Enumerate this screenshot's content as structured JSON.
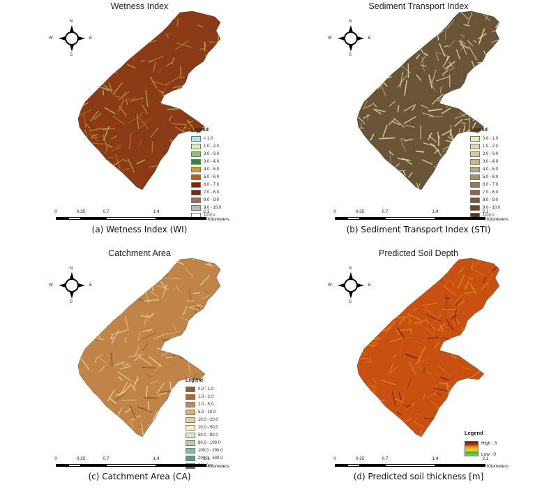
{
  "compass": {
    "n": "N",
    "s": "S",
    "e": "E",
    "w": "W"
  },
  "scale": {
    "ticks": [
      "0",
      "0.35",
      "0.7",
      "1.4",
      "2.1"
    ],
    "units": "Kilometers"
  },
  "panels": [
    {
      "title": "Wetness Index",
      "caption": "(a) Wetness Index (WI)",
      "legend_title": "Legend",
      "legend": [
        {
          "label": "< 1.0",
          "color": "#a8e8e8"
        },
        {
          "label": "1.0 - 2.0",
          "color": "#d8f0a8"
        },
        {
          "label": "2.0 - 3.0",
          "color": "#88c860"
        },
        {
          "label": "3.0 - 4.0",
          "color": "#2e8a3a"
        },
        {
          "label": "4.0 - 5.0",
          "color": "#c8a020"
        },
        {
          "label": "5.0 - 6.0",
          "color": "#c85a10"
        },
        {
          "label": "6.0 - 7.0",
          "color": "#8a2008"
        },
        {
          "label": "7.0 - 8.0",
          "color": "#6a3018"
        },
        {
          "label": "8.0 - 9.0",
          "color": "#9a7060"
        },
        {
          "label": "9.0 - 10.0",
          "color": "#b8b8b8"
        },
        {
          "label": "10.0 <",
          "color": "#ffffff"
        }
      ],
      "fill": "#8a3a14",
      "texture": "#c89a40",
      "accent": "#9ad070"
    },
    {
      "title": "Sediment Transport Index",
      "caption": "(b) Sediment Transport Index (STI)",
      "legend_title": "Legend",
      "legend": [
        {
          "label": "0.0 - 1.0",
          "color": "#f4e8b8"
        },
        {
          "label": "1.0 - 2.0",
          "color": "#e4d8a8"
        },
        {
          "label": "2.0 - 3.0",
          "color": "#d8c898"
        },
        {
          "label": "3.0 - 4.0",
          "color": "#c8b888"
        },
        {
          "label": "4.0 - 5.0",
          "color": "#b8a878"
        },
        {
          "label": "5.0 - 6.0",
          "color": "#a89068"
        },
        {
          "label": "6.0 - 7.0",
          "color": "#987858"
        },
        {
          "label": "7.0 - 8.0",
          "color": "#886850"
        },
        {
          "label": "8.0 - 9.0",
          "color": "#785840"
        },
        {
          "label": "9.0 - 10.0",
          "color": "#684830"
        },
        {
          "label": "10.0 <",
          "color": "#583820"
        }
      ],
      "fill": "#6a5438",
      "texture": "#eee0b0",
      "accent": "#f4e8b8"
    },
    {
      "title": "Catchment Area",
      "caption": "(c) Catchment Area (CA)",
      "legend_title": "Legend",
      "legend": [
        {
          "label": "0.0 - 1.0",
          "color": "#9a5a28"
        },
        {
          "label": "1.0 - 2.0",
          "color": "#b06a30"
        },
        {
          "label": "2.0 - 5.0",
          "color": "#c8884a"
        },
        {
          "label": "5.0 - 10.0",
          "color": "#dcac70"
        },
        {
          "label": "10.0 - 20.0",
          "color": "#ecd098"
        },
        {
          "label": "20.0 - 50.0",
          "color": "#f8f0c0"
        },
        {
          "label": "50.0 - 80.0",
          "color": "#d8e8c0"
        },
        {
          "label": "80.0 - 100.0",
          "color": "#b0d0b0"
        },
        {
          "label": "100.0 - 200.0",
          "color": "#88b8a8"
        },
        {
          "label": "200.0 - 500.0",
          "color": "#5a9898"
        },
        {
          "label": "500.0 <",
          "color": "#2a7890"
        }
      ],
      "fill": "#c08448",
      "texture": "#f0d8a0",
      "accent": "#8a5020"
    },
    {
      "title": "Predicted Soil Depth",
      "caption": "(d) Predicted soil thickness [m]",
      "legend_title": "Legend",
      "high_label": "High : 3",
      "low_label": "Low : 0",
      "fill": "#c85010",
      "texture": "#e88a20",
      "accent": "#6a2008"
    }
  ]
}
